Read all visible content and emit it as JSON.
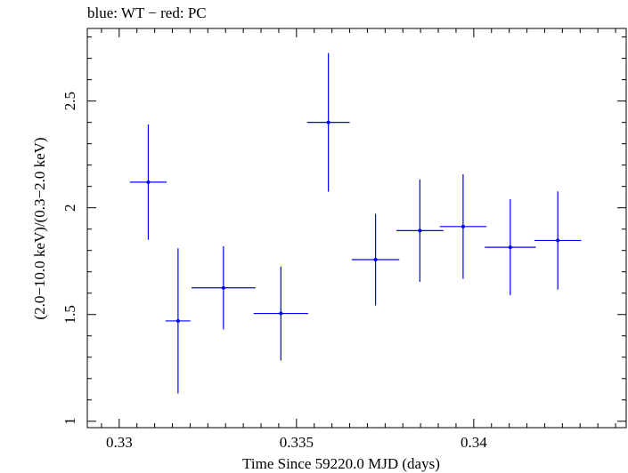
{
  "chart_data": {
    "type": "scatter",
    "title": "blue: WT − red: PC",
    "xlabel": "Time Since 59220.0 MJD (days)",
    "ylabel": "(2.0−10.0 keV)/(0.3−2.0 keV)",
    "xlim": [
      0.3291,
      0.3443
    ],
    "ylim": [
      0.97,
      2.84
    ],
    "x_ticks": [
      0.33,
      0.335,
      0.34
    ],
    "x_tick_labels": [
      "0.33",
      "0.335",
      "0.34"
    ],
    "y_ticks": [
      1,
      1.5,
      2,
      2.5
    ],
    "y_tick_labels": [
      "1",
      "1.5",
      "2",
      "2.5"
    ],
    "grid": false,
    "color": "#0000ff",
    "series": [
      {
        "points": [
          {
            "x": 0.33082,
            "xerr": 0.00052,
            "y": 2.12,
            "yerr_low": 0.27,
            "yerr_high": 0.27
          },
          {
            "x": 0.33166,
            "xerr": 0.00035,
            "y": 1.47,
            "yerr_low": 0.34,
            "yerr_high": 0.34
          },
          {
            "x": 0.33294,
            "xerr": 0.0009,
            "y": 1.625,
            "yerr_low": 0.195,
            "yerr_high": 0.195
          },
          {
            "x": 0.33456,
            "xerr": 0.00077,
            "y": 1.505,
            "yerr_low": 0.22,
            "yerr_high": 0.22
          },
          {
            "x": 0.3359,
            "xerr": 0.0006,
            "y": 2.4,
            "yerr_low": 0.325,
            "yerr_high": 0.325
          },
          {
            "x": 0.33723,
            "xerr": 0.00067,
            "y": 1.757,
            "yerr_low": 0.215,
            "yerr_high": 0.215
          },
          {
            "x": 0.33848,
            "xerr": 0.00066,
            "y": 1.893,
            "yerr_low": 0.24,
            "yerr_high": 0.24
          },
          {
            "x": 0.3397,
            "xerr": 0.00066,
            "y": 1.912,
            "yerr_low": 0.245,
            "yerr_high": 0.245
          },
          {
            "x": 0.34103,
            "xerr": 0.00072,
            "y": 1.815,
            "yerr_low": 0.225,
            "yerr_high": 0.225
          },
          {
            "x": 0.34237,
            "xerr": 0.00066,
            "y": 1.847,
            "yerr_low": 0.23,
            "yerr_high": 0.23
          }
        ]
      }
    ]
  }
}
